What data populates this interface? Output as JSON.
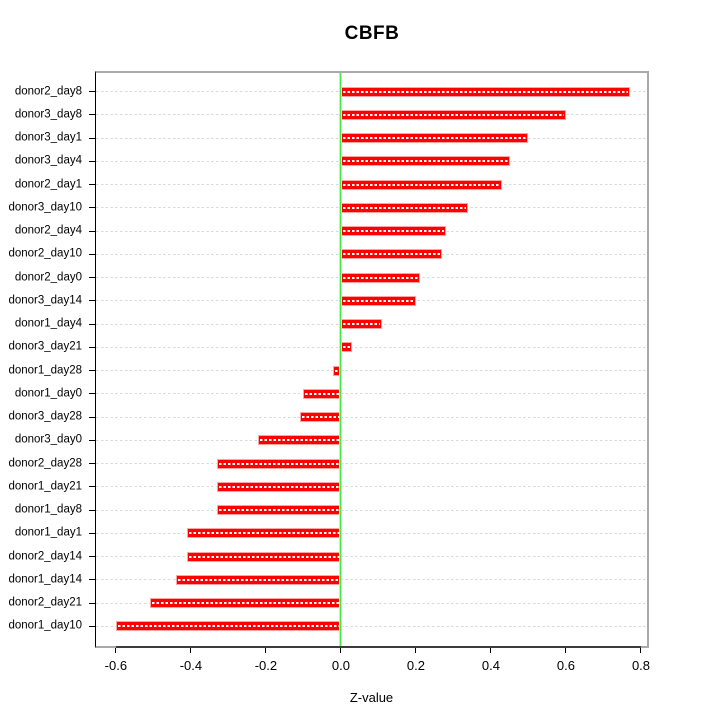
{
  "chart_data": {
    "type": "bar",
    "orientation": "horizontal",
    "title": "CBFB",
    "xlabel": "Z-value",
    "ylabel": "",
    "categories": [
      "donor2_day8",
      "donor3_day8",
      "donor3_day1",
      "donor3_day4",
      "donor2_day1",
      "donor3_day10",
      "donor2_day4",
      "donor2_day10",
      "donor2_day0",
      "donor3_day14",
      "donor1_day4",
      "donor3_day21",
      "donor1_day28",
      "donor1_day0",
      "donor3_day28",
      "donor3_day0",
      "donor2_day28",
      "donor1_day21",
      "donor1_day8",
      "donor1_day1",
      "donor2_day14",
      "donor1_day14",
      "donor2_day21",
      "donor1_day10"
    ],
    "values": [
      0.77,
      0.6,
      0.5,
      0.45,
      0.43,
      0.34,
      0.28,
      0.27,
      0.21,
      0.2,
      0.11,
      0.03,
      -0.02,
      -0.1,
      -0.11,
      -0.22,
      -0.33,
      -0.33,
      -0.33,
      -0.41,
      -0.41,
      -0.44,
      -0.51,
      -0.6
    ],
    "x_ticks": [
      -0.6,
      -0.4,
      -0.2,
      0.0,
      0.2,
      0.4,
      0.6,
      0.8
    ],
    "x_tick_labels": [
      "-0.6",
      "-0.4",
      "-0.2",
      "0.0",
      "0.2",
      "0.4",
      "0.6",
      "0.8"
    ],
    "xlim": [
      -0.653,
      0.816
    ],
    "zero_line_x": 0,
    "grid": "dashed horizontal gridline at each bar row",
    "legend_position": "none",
    "colors": {
      "bar_fill": "#ff0000",
      "bar_border": "#ffa3a3",
      "bar_dash": "#ffffff",
      "zero_line": "#46e846",
      "grid": "#d9d9d9",
      "box_border": "#a9a9a9",
      "axis_line": "#3c3c3c",
      "text": "#000000"
    }
  }
}
